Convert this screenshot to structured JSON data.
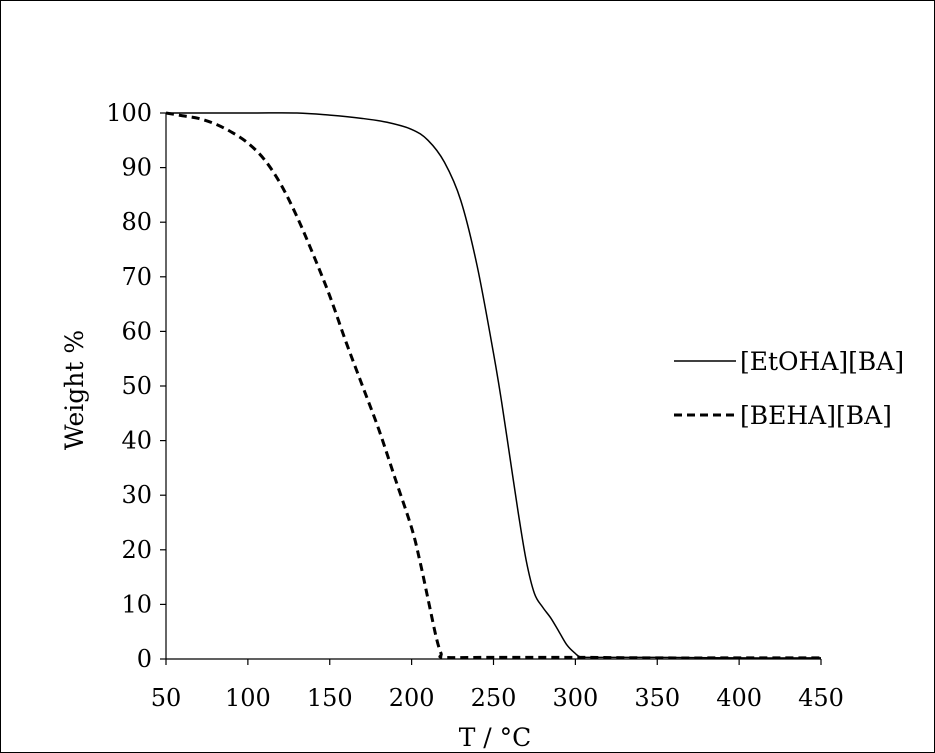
{
  "chart_data": {
    "type": "line",
    "title": "",
    "xlabel": "T / °C",
    "ylabel": "Weight %",
    "xlim": [
      50,
      450
    ],
    "ylim": [
      0,
      100
    ],
    "xticks": [
      50,
      100,
      150,
      200,
      250,
      300,
      350,
      400,
      450
    ],
    "yticks": [
      0,
      10,
      20,
      30,
      40,
      50,
      60,
      70,
      80,
      90,
      100
    ],
    "grid": false,
    "legend_position": "right",
    "series": [
      {
        "name": "[EtOHA][BA]",
        "line_style": "solid",
        "color": "#000000",
        "x": [
          50,
          100,
          130,
          150,
          170,
          185,
          200,
          210,
          220,
          230,
          240,
          250,
          255,
          260,
          265,
          270,
          275,
          280,
          285,
          290,
          295,
          300,
          303,
          310,
          350,
          400,
          450
        ],
        "y": [
          100,
          100,
          100,
          99.6,
          99,
          98.3,
          97,
          95,
          91,
          84,
          72,
          56,
          47,
          37,
          27,
          18,
          12,
          9.5,
          7.5,
          5,
          2.5,
          1,
          0.4,
          0.3,
          0.3,
          0.2,
          0.2
        ]
      },
      {
        "name": "[BEHA][BA]",
        "line_style": "dashed",
        "color": "#000000",
        "x": [
          50,
          60,
          70,
          80,
          90,
          100,
          110,
          120,
          130,
          140,
          150,
          160,
          170,
          180,
          190,
          200,
          205,
          210,
          215,
          218,
          220,
          250,
          300,
          350,
          400,
          450
        ],
        "y": [
          100,
          99.5,
          99,
          98,
          96.5,
          94.5,
          91.5,
          87,
          81,
          74,
          66.5,
          58,
          50,
          42,
          33,
          24,
          18,
          11,
          4,
          1,
          0.3,
          0.3,
          0.3,
          0.2,
          0.2,
          0.2
        ]
      }
    ]
  }
}
